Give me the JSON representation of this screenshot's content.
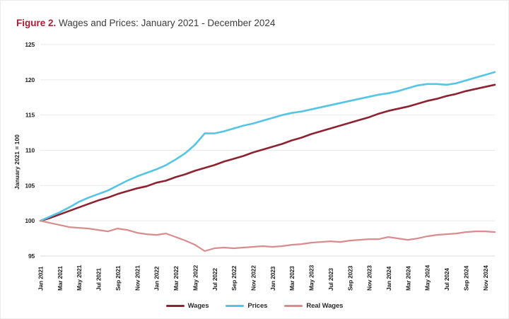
{
  "figure": {
    "label": "Figure 2.",
    "title": " Wages and Prices: January 2021 - December 2024"
  },
  "colors": {
    "figure_label": "#a51e36",
    "grid": "#e9e9e9",
    "axis": "#d8d8d8",
    "tick_text": "#1f1f1f",
    "wages": "#8b2332",
    "prices": "#56c5e5",
    "real_wages": "#d98c8e"
  },
  "chart_data": {
    "type": "line",
    "title": "Wages and Prices: January 2021 - December 2024",
    "xlabel": "",
    "ylabel": "January 2021 = 100",
    "ylim": [
      95,
      125
    ],
    "yticks": [
      95,
      100,
      105,
      110,
      115,
      120,
      125
    ],
    "grid": true,
    "legend_position": "bottom",
    "n_points": 48,
    "x_tick_every_n_months": 2,
    "x_tick_labels": [
      "Jan 2021",
      "Mar 2021",
      "May 2021",
      "Jul 2021",
      "Sep 2021",
      "Nov 2021",
      "Jan 2022",
      "Mar 2022",
      "May 2022",
      "Jul 2022",
      "Sep 2022",
      "Nov 2022",
      "Jan 2023",
      "Mar 2023",
      "May 2023",
      "Jul 2023",
      "Sep 2023",
      "Nov 2023",
      "Jan 2024",
      "Mar 2024",
      "May 2024",
      "Jul 2024",
      "Sep 2024",
      "Nov 2024"
    ],
    "series": [
      {
        "name": "Wages",
        "color": "#8b2332",
        "stroke_width": 2.6,
        "values": [
          100,
          100.4,
          100.9,
          101.4,
          101.9,
          102.4,
          102.9,
          103.3,
          103.8,
          104.2,
          104.6,
          104.9,
          105.4,
          105.7,
          106.2,
          106.6,
          107.1,
          107.5,
          107.9,
          108.4,
          108.8,
          109.2,
          109.7,
          110.1,
          110.5,
          110.9,
          111.4,
          111.8,
          112.3,
          112.7,
          113.1,
          113.5,
          113.9,
          114.3,
          114.7,
          115.2,
          115.6,
          115.9,
          116.2,
          116.6,
          117.0,
          117.3,
          117.7,
          118.0,
          118.4,
          118.7,
          119.0,
          119.3
        ]
      },
      {
        "name": "Prices",
        "color": "#56c5e5",
        "stroke_width": 2.6,
        "values": [
          100,
          100.6,
          101.2,
          101.9,
          102.7,
          103.3,
          103.8,
          104.3,
          105.0,
          105.7,
          106.3,
          106.8,
          107.3,
          107.9,
          108.7,
          109.6,
          110.8,
          112.4,
          112.4,
          112.7,
          113.1,
          113.5,
          113.8,
          114.2,
          114.6,
          115.0,
          115.3,
          115.5,
          115.8,
          116.1,
          116.4,
          116.7,
          117.0,
          117.3,
          117.6,
          117.9,
          118.1,
          118.4,
          118.8,
          119.2,
          119.4,
          119.4,
          119.3,
          119.5,
          119.9,
          120.3,
          120.7,
          121.1
        ]
      },
      {
        "name": "Real Wages",
        "color": "#d98c8e",
        "stroke_width": 2.2,
        "values": [
          100,
          99.7,
          99.4,
          99.1,
          99.0,
          98.9,
          98.7,
          98.5,
          98.9,
          98.7,
          98.3,
          98.1,
          98.0,
          98.2,
          97.7,
          97.2,
          96.6,
          95.7,
          96.1,
          96.2,
          96.1,
          96.2,
          96.3,
          96.4,
          96.3,
          96.4,
          96.6,
          96.7,
          96.9,
          97.0,
          97.1,
          97.0,
          97.2,
          97.3,
          97.4,
          97.4,
          97.7,
          97.5,
          97.3,
          97.5,
          97.8,
          98.0,
          98.1,
          98.2,
          98.4,
          98.5,
          98.5,
          98.4
        ]
      }
    ]
  }
}
